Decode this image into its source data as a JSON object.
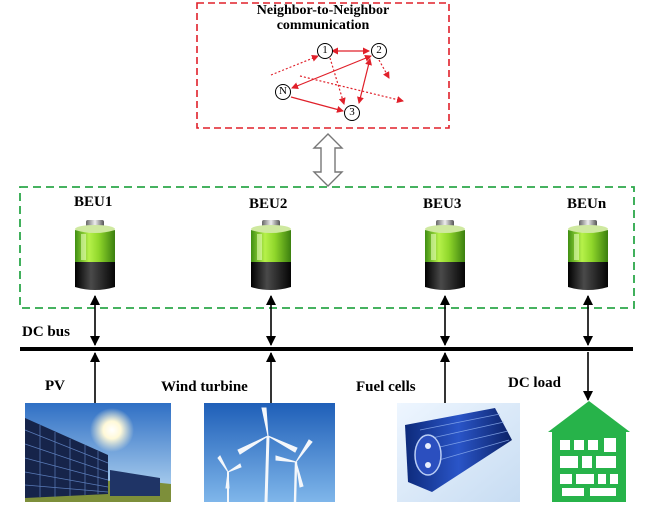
{
  "comm": {
    "title_line1": "Neighbor-to-Neighbor",
    "title_line2": "communication",
    "nodes": [
      "1",
      "2",
      "N",
      "3"
    ]
  },
  "units": [
    "BEU1",
    "BEU2",
    "BEU3",
    "BEUn"
  ],
  "bus_label": "DC bus",
  "sources": [
    "PV",
    "Wind turbine",
    "Fuel cells",
    "DC load"
  ],
  "colors": {
    "comm_border": "#e0202a",
    "unit_border": "#2ca84a",
    "battery_green": "#7ccf1e",
    "battery_dark": "#1a1a1a",
    "bus": "#000000"
  },
  "icons": [
    "solar-panel-picture",
    "wind-turbine-picture",
    "fuel-cell-picture",
    "dc-load-house-icon"
  ]
}
